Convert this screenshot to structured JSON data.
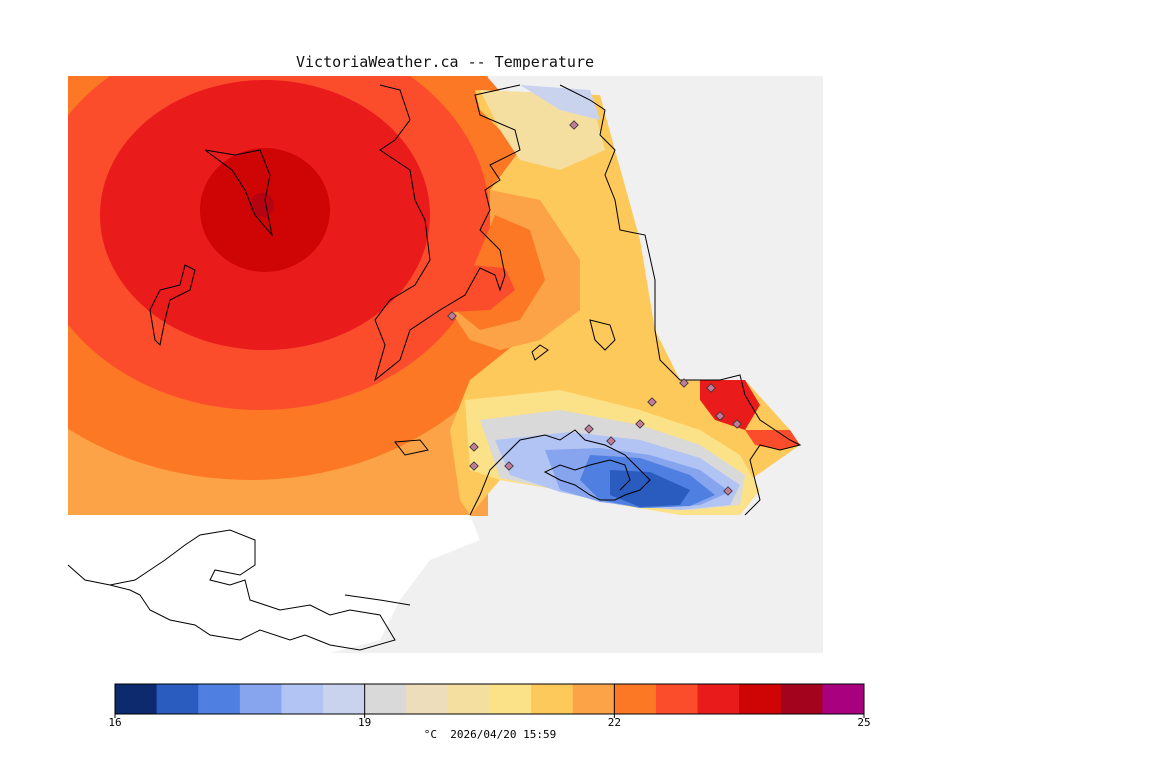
{
  "title": "VictoriaWeather.ca -- Temperature",
  "colorbar": {
    "min": 16,
    "max": 25,
    "tick_labels": [
      "16",
      "19",
      "22",
      "25"
    ],
    "colors": [
      "#0d2a6e",
      "#2a5bbf",
      "#4f7fe0",
      "#86a5ee",
      "#b2c4f4",
      "#c9d3ee",
      "#d9d9d9",
      "#eeddbb",
      "#f5dfa0",
      "#fbe187",
      "#fdc95b",
      "#fca347",
      "#fc7825",
      "#fb4d2c",
      "#ea1b1b",
      "#cf0404",
      "#a4031d",
      "#a8007f"
    ]
  },
  "caption": {
    "units": "°C",
    "timestamp": "2026/04/20 15:59"
  }
}
